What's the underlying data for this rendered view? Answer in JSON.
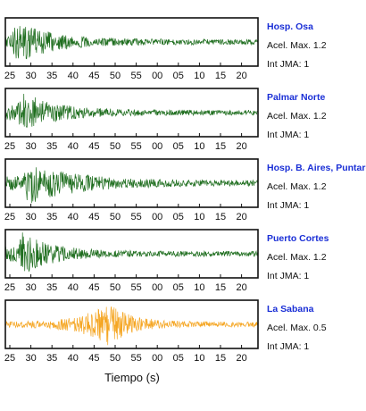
{
  "chart_data": {
    "type": "line",
    "xlabel": "Tiempo (s)",
    "x_ticks": [
      "25",
      "30",
      "35",
      "40",
      "45",
      "50",
      "55",
      "00",
      "05",
      "10",
      "15",
      "20"
    ],
    "colors": {
      "green": "#1f6e1f",
      "orange": "#f5a623",
      "label_blue": "#1a2fd6"
    },
    "panels": [
      {
        "name": "Hosp. Osa",
        "accel_label": "Acel. Max. 1.2",
        "int_label": "Int JMA: 1",
        "color": "#1f6e1f",
        "peak_time_s": 0.5,
        "decay": 0.025
      },
      {
        "name": "Palmar Norte",
        "accel_label": "Acel. Max. 1.2",
        "int_label": "Int JMA: 1",
        "color": "#1f6e1f",
        "peak_time_s": 2,
        "decay": 0.028
      },
      {
        "name": "Hosp. B. Aires, Puntare",
        "accel_label": "Acel. Max. 1.2",
        "int_label": "Int JMA: 1",
        "color": "#1f6e1f",
        "peak_time_s": 3,
        "decay": 0.018
      },
      {
        "name": "Puerto Cortes",
        "accel_label": "Acel. Max. 1.2",
        "int_label": "Int JMA: 1",
        "color": "#1f6e1f",
        "peak_time_s": 2,
        "decay": 0.03
      },
      {
        "name": "La Sabana",
        "accel_label": "Acel. Max. 0.5",
        "int_label": "Int JMA: 1",
        "color": "#f5a623",
        "peak_time_s": 13,
        "decay": 0.04
      }
    ]
  }
}
